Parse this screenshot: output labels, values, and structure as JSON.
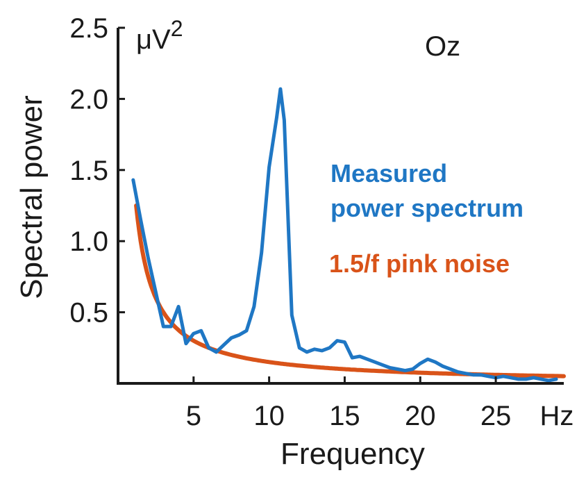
{
  "chart_data": {
    "type": "line",
    "title": "",
    "panel_label": "Oz",
    "xlabel": "Frequency",
    "ylabel": "Spectral power",
    "x_unit": "Hz",
    "y_unit": "μV",
    "y_unit_sup": "2",
    "xlim": [
      0,
      29.5
    ],
    "ylim": [
      0,
      2.5
    ],
    "x_ticks": [
      5,
      10,
      15,
      20,
      25
    ],
    "x_tick_labels": [
      "5",
      "10",
      "15",
      "20",
      "25"
    ],
    "y_ticks": [
      0.5,
      1.0,
      1.5,
      2.0,
      2.5
    ],
    "y_tick_labels": [
      "0.5",
      "1.0",
      "1.5",
      "2.0",
      "2.5"
    ],
    "grid": false,
    "series": [
      {
        "name": "Measured power spectrum",
        "legend_lines": [
          "Measured",
          "power spectrum"
        ],
        "color": "#1f77c4",
        "x": [
          1.0,
          1.5,
          2.0,
          2.5,
          3.0,
          3.5,
          4.0,
          4.5,
          5.0,
          5.5,
          6.0,
          6.5,
          7.0,
          7.5,
          8.0,
          8.5,
          9.0,
          9.5,
          10.0,
          10.5,
          10.75,
          11.0,
          11.5,
          12.0,
          12.5,
          13.0,
          13.5,
          14.0,
          14.5,
          15.0,
          15.5,
          16.0,
          16.5,
          17.0,
          17.5,
          18.0,
          18.5,
          19.0,
          19.5,
          20.0,
          20.5,
          21.0,
          21.5,
          22.0,
          22.5,
          23.0,
          23.5,
          24.0,
          24.5,
          25.0,
          25.5,
          26.0,
          26.5,
          27.0,
          27.5,
          28.0,
          28.5,
          29.0
        ],
        "y": [
          1.43,
          1.15,
          0.88,
          0.64,
          0.4,
          0.4,
          0.54,
          0.28,
          0.35,
          0.37,
          0.25,
          0.22,
          0.27,
          0.32,
          0.34,
          0.37,
          0.54,
          0.92,
          1.52,
          1.87,
          2.07,
          1.85,
          0.48,
          0.25,
          0.22,
          0.24,
          0.23,
          0.25,
          0.3,
          0.29,
          0.18,
          0.19,
          0.17,
          0.15,
          0.13,
          0.11,
          0.1,
          0.09,
          0.1,
          0.14,
          0.17,
          0.15,
          0.12,
          0.1,
          0.08,
          0.07,
          0.06,
          0.06,
          0.05,
          0.04,
          0.05,
          0.04,
          0.03,
          0.03,
          0.04,
          0.03,
          0.02,
          0.03
        ]
      },
      {
        "name": "1.5/f pink noise",
        "legend_lines": [
          "1.5/f pink noise"
        ],
        "color": "#d95319",
        "function": "1.5/f",
        "x_range": [
          1.2,
          29.5
        ]
      }
    ]
  }
}
